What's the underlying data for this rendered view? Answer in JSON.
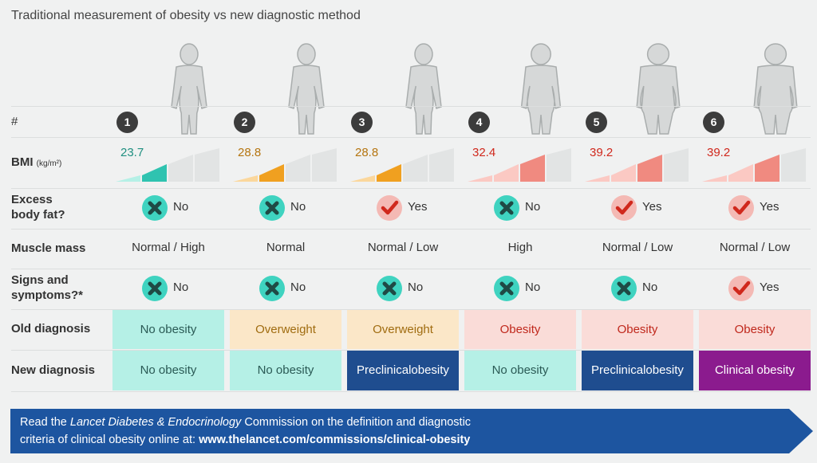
{
  "title": "Traditional measurement of obesity vs new diagnostic method",
  "row_labels": {
    "index": "#",
    "bmi": "BMI",
    "bmi_unit": "(kg/m²)",
    "fat_line1": "Excess",
    "fat_line2": "body fat?",
    "muscle": "Muscle mass",
    "signs_line1": "Signs and",
    "signs_line2": "symptoms?*",
    "old": "Old diagnosis",
    "new": "New diagnosis"
  },
  "colors": {
    "teal": "#2fc3b0",
    "teal_light": "#b5f0e6",
    "orange": "#f0a020",
    "orange_light": "#fbe7c8",
    "salmon": "#f08a80",
    "pink_light": "#fadcd8",
    "navy": "#1f4d8f",
    "purple": "#8b1b8e",
    "banner": "#1d55a0",
    "red": "#d0281c"
  },
  "columns": [
    {
      "num": "1",
      "bmi": "23.7",
      "bmi_level": 2,
      "bmi_color": "#2fc3b0",
      "bmi_light": "#b5f0e6",
      "bmi_text": "#1f8f80",
      "fat": "No",
      "muscle": "Normal / High",
      "signs": "No",
      "old": "No obesity",
      "old_bg": "#b5f0e6",
      "old_fg": "#2a5a55",
      "new": "No obesity",
      "new_bg": "#b5f0e6",
      "new_fg": "#2a5a55",
      "fig": "slim"
    },
    {
      "num": "2",
      "bmi": "28.8",
      "bmi_level": 2,
      "bmi_color": "#f0a020",
      "bmi_light": "#fbd79c",
      "bmi_text": "#b57510",
      "fat": "No",
      "muscle": "Normal",
      "signs": "No",
      "old": "Overweight",
      "old_bg": "#fbe7c8",
      "old_fg": "#a06c10",
      "new": "No obesity",
      "new_bg": "#b5f0e6",
      "new_fg": "#2a5a55",
      "fig": "slim"
    },
    {
      "num": "3",
      "bmi": "28.8",
      "bmi_level": 2,
      "bmi_color": "#f0a020",
      "bmi_light": "#fbd79c",
      "bmi_text": "#b57510",
      "fat": "Yes",
      "muscle": "Normal / Low",
      "signs": "No",
      "old": "Overweight",
      "old_bg": "#fbe7c8",
      "old_fg": "#a06c10",
      "new_line1": "Preclinical",
      "new_line2": "obesity",
      "new_bg": "#1f4d8f",
      "new_fg": "#ffffff",
      "fig": "slim"
    },
    {
      "num": "4",
      "bmi": "32.4",
      "bmi_level": 3,
      "bmi_color": "#f08a80",
      "bmi_light": "#fbc9c3",
      "bmi_text": "#d0281c",
      "fat": "No",
      "muscle": "High",
      "signs": "No",
      "old": "Obesity",
      "old_bg": "#fadcd8",
      "old_fg": "#c0281c",
      "new": "No obesity",
      "new_bg": "#b5f0e6",
      "new_fg": "#2a5a55",
      "fig": "medium"
    },
    {
      "num": "5",
      "bmi": "39.2",
      "bmi_level": 3,
      "bmi_color": "#f08a80",
      "bmi_light": "#fbc9c3",
      "bmi_text": "#d0281c",
      "fat": "Yes",
      "muscle": "Normal / Low",
      "signs": "No",
      "old": "Obesity",
      "old_bg": "#fadcd8",
      "old_fg": "#c0281c",
      "new_line1": "Preclinical",
      "new_line2": "obesity",
      "new_bg": "#1f4d8f",
      "new_fg": "#ffffff",
      "fig": "large"
    },
    {
      "num": "6",
      "bmi": "39.2",
      "bmi_level": 3,
      "bmi_color": "#f08a80",
      "bmi_light": "#fbc9c3",
      "bmi_text": "#d0281c",
      "fat": "Yes",
      "muscle": "Normal / Low",
      "signs": "Yes",
      "old": "Obesity",
      "old_bg": "#fadcd8",
      "old_fg": "#c0281c",
      "new": "Clinical obesity",
      "new_bg": "#8b1b8e",
      "new_fg": "#ffffff",
      "fig": "large"
    }
  ],
  "banner": {
    "pre": "Read the ",
    "journal": "Lancet Diabetes & Endocrinology",
    "mid": " Commission on the definition and diagnostic",
    "line2": "criteria of clinical obesity online at: ",
    "url": "www.thelancet.com/commissions/clinical-obesity"
  }
}
